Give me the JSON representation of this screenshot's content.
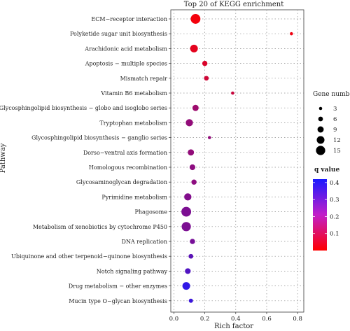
{
  "chart_data": {
    "type": "scatter",
    "title": "Top 20 of KEGG enrichment",
    "xlabel": "Rich factor",
    "ylabel": "Pathway",
    "xlim": [
      -0.02,
      0.84
    ],
    "xticks": [
      0.0,
      0.2,
      0.4,
      0.6,
      0.8
    ],
    "xtick_labels": [
      "0.0",
      "0.2",
      "0.4",
      "0.6",
      "0.8"
    ],
    "grid": true,
    "points": [
      {
        "pathway": "ECM−receptor interaction",
        "rich_factor": 0.14,
        "gene_number": 16,
        "q_value": 0.02
      },
      {
        "pathway": "Polyketide sugar unit biosynthesis",
        "rich_factor": 0.76,
        "gene_number": 3,
        "q_value": 0.03
      },
      {
        "pathway": "Arachidonic acid metabolism",
        "rich_factor": 0.13,
        "gene_number": 12,
        "q_value": 0.05
      },
      {
        "pathway": "Apoptosis − multiple species",
        "rich_factor": 0.2,
        "gene_number": 7,
        "q_value": 0.07
      },
      {
        "pathway": "Mismatch repair",
        "rich_factor": 0.21,
        "gene_number": 6,
        "q_value": 0.09
      },
      {
        "pathway": "Vitamin B6 metabolism",
        "rich_factor": 0.38,
        "gene_number": 3,
        "q_value": 0.1
      },
      {
        "pathway": "Glycosphingolipid biosynthesis − globo and isoglobo series",
        "rich_factor": 0.14,
        "gene_number": 9,
        "q_value": 0.18
      },
      {
        "pathway": "Tryptophan metabolism",
        "rich_factor": 0.1,
        "gene_number": 11,
        "q_value": 0.2
      },
      {
        "pathway": "Glycosphingolipid biosynthesis − ganglio series",
        "rich_factor": 0.23,
        "gene_number": 3,
        "q_value": 0.2
      },
      {
        "pathway": "Dorso−ventral axis formation",
        "rich_factor": 0.11,
        "gene_number": 9,
        "q_value": 0.2
      },
      {
        "pathway": "Homologous recombination",
        "rich_factor": 0.12,
        "gene_number": 8,
        "q_value": 0.21
      },
      {
        "pathway": "Glycosaminoglycan degradation",
        "rich_factor": 0.13,
        "gene_number": 7,
        "q_value": 0.21
      },
      {
        "pathway": "Pyrimidine metabolism",
        "rich_factor": 0.09,
        "gene_number": 11,
        "q_value": 0.23
      },
      {
        "pathway": "Phagosome",
        "rich_factor": 0.08,
        "gene_number": 16,
        "q_value": 0.24
      },
      {
        "pathway": "Metabolism of xenobiotics by cytochrome P450",
        "rich_factor": 0.08,
        "gene_number": 15,
        "q_value": 0.24
      },
      {
        "pathway": "DNA replication",
        "rich_factor": 0.12,
        "gene_number": 7,
        "q_value": 0.25
      },
      {
        "pathway": "Ubiquinone and other terpenoid−quinone biosynthesis",
        "rich_factor": 0.11,
        "gene_number": 6,
        "q_value": 0.3
      },
      {
        "pathway": "Notch signaling pathway",
        "rich_factor": 0.09,
        "gene_number": 8,
        "q_value": 0.32
      },
      {
        "pathway": "Drug metabolism − other enzymes",
        "rich_factor": 0.08,
        "gene_number": 12,
        "q_value": 0.38
      },
      {
        "pathway": "Mucin type O−glycan biosynthesis",
        "rich_factor": 0.11,
        "gene_number": 5,
        "q_value": 0.36
      }
    ],
    "size_legend": {
      "title": "Gene number",
      "values": [
        3,
        6,
        9,
        12,
        15
      ],
      "labels": [
        "3",
        "6",
        "9",
        "12",
        "15"
      ]
    },
    "color_legend": {
      "title": "q value",
      "range": [
        0.0,
        0.42
      ],
      "ticks": [
        0.1,
        0.2,
        0.3,
        0.4
      ],
      "tick_labels": [
        "0.1",
        "0.2",
        "0.3",
        "0.4"
      ],
      "low_color": "#ff0000",
      "high_color": "#1a1aff"
    },
    "grid_color": "#8c8c8c"
  }
}
